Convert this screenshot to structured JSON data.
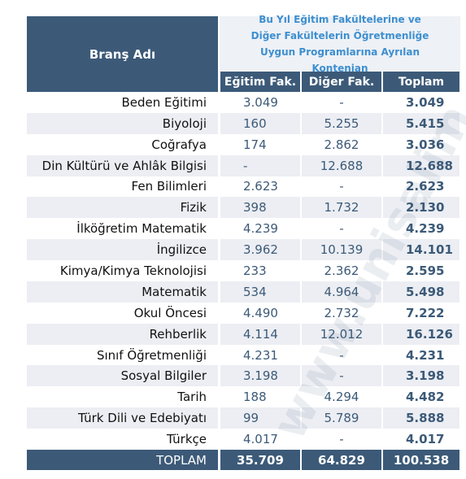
{
  "header": {
    "branch_label": "Branş Adı",
    "group_title": "Bu Yıl Eğitim Fakültelerine ve Diğer Fakültelerin Öğretmenliğe Uygun Programlarına Ayrılan Kontenjan",
    "columns": [
      "Eğitim Fak.",
      "Diğer Fak.",
      "Toplam"
    ]
  },
  "table": {
    "rows": [
      [
        "Beden Eğitimi",
        "3.049",
        "-",
        "3.049"
      ],
      [
        "Biyoloji",
        "160",
        "5.255",
        "5.415"
      ],
      [
        "Coğrafya",
        "174",
        "2.862",
        "3.036"
      ],
      [
        "Din Kültürü ve Ahlâk Bilgisi",
        "-",
        "12.688",
        "12.688"
      ],
      [
        "Fen Bilimleri",
        "2.623",
        "-",
        "2.623"
      ],
      [
        "Fizik",
        "398",
        "1.732",
        "2.130"
      ],
      [
        "İlköğretim Matematik",
        "4.239",
        "-",
        "4.239"
      ],
      [
        "İngilizce",
        "3.962",
        "10.139",
        "14.101"
      ],
      [
        "Kimya/Kimya Teknolojisi",
        "233",
        "2.362",
        "2.595"
      ],
      [
        "Matematik",
        "534",
        "4.964",
        "5.498"
      ],
      [
        "Okul Öncesi",
        "4.490",
        "2.732",
        "7.222"
      ],
      [
        "Rehberlik",
        "4.114",
        "12.012",
        "16.126"
      ],
      [
        "Sınıf Öğretmenliği",
        "4.231",
        "-",
        "4.231"
      ],
      [
        "Sosyal Bilgiler",
        "3.198",
        "-",
        "3.198"
      ],
      [
        "Tarih",
        "188",
        "4.294",
        "4.482"
      ],
      [
        "Türk Dili ve Edebiyatı",
        "99",
        "5.789",
        "5.888"
      ],
      [
        "Türkçe",
        "4.017",
        "-",
        "4.017"
      ]
    ],
    "total": [
      "TOPLAM",
      "35.709",
      "64.829",
      "100.538"
    ]
  },
  "watermark": "www.unisalim"
}
